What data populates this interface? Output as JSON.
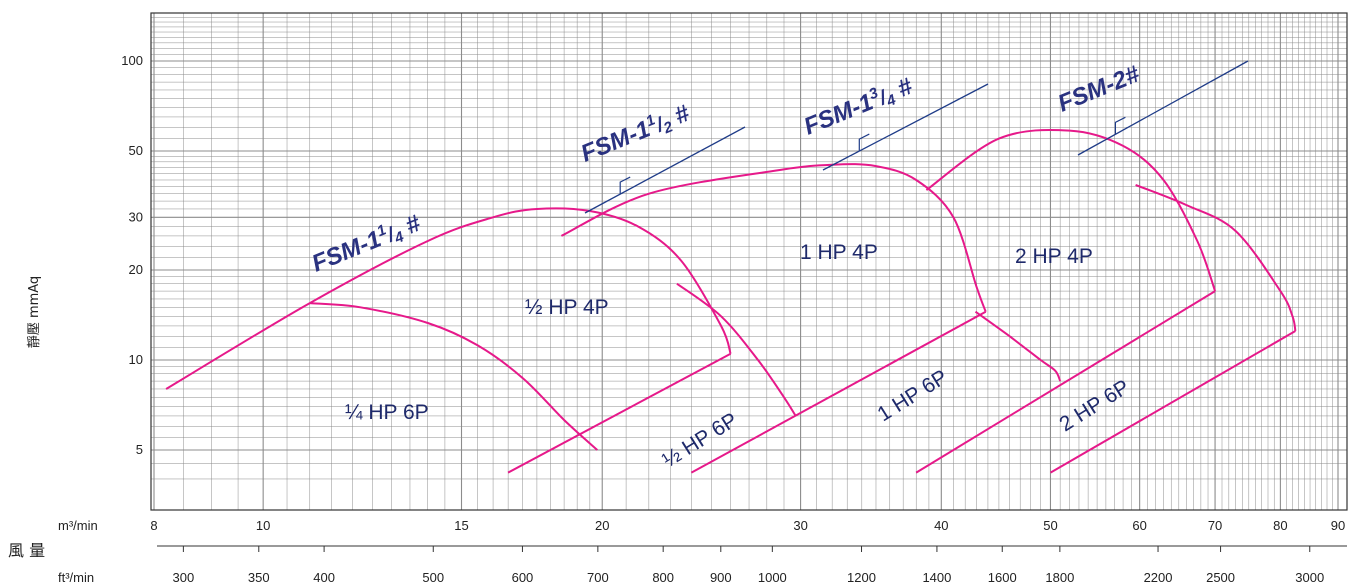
{
  "chart_data": {
    "type": "line",
    "y_axis": {
      "scale": "log",
      "label": "靜壓 mmAq",
      "ticks": [
        5,
        10,
        20,
        30,
        50,
        100
      ],
      "ylim": [
        3.5,
        150
      ]
    },
    "x_axis_m3": {
      "unit_label": "m³/min",
      "ticks": [
        8,
        10,
        15,
        20,
        30,
        40,
        50,
        60,
        70,
        80,
        90
      ]
    },
    "x_axis_ft3": {
      "unit_label": "ft³/min",
      "ticks": [
        300,
        350,
        400,
        500,
        600,
        700,
        800,
        900,
        1000,
        1200,
        1400,
        1600,
        1800,
        2200,
        2500,
        3000
      ]
    },
    "x_axis_title": "風 量",
    "grid": true,
    "series": [
      {
        "name": "¼ HP 6P",
        "color": "#e6198a",
        "x": [
          11.0,
          12.2,
          14.0,
          15.5,
          17.0,
          18.5,
          19.8
        ],
        "y": [
          15.5,
          15.0,
          13.3,
          11.2,
          8.7,
          6.3,
          5.0
        ]
      },
      {
        "name": "½ HP 4P",
        "color": "#e6198a",
        "x": [
          8.2,
          11.0,
          14.0,
          16.0,
          17.5,
          19.5,
          21.5,
          23.5,
          25.5,
          26.0
        ],
        "y": [
          8.0,
          15.5,
          25.0,
          30.0,
          32.0,
          31.5,
          28.0,
          21.5,
          13.0,
          10.5
        ]
      },
      {
        "name": "½ HP 6P",
        "color": "#e6198a",
        "x": [
          23.3,
          25.5,
          27.5,
          29.0,
          29.7
        ],
        "y": [
          18.0,
          14.0,
          10.0,
          7.5,
          6.5
        ]
      },
      {
        "name": "1 HP 4P",
        "color": "#e6198a",
        "x": [
          18.4,
          22.0,
          28.5,
          32.0,
          35.0,
          38.0,
          41.0,
          43.0,
          43.8
        ],
        "y": [
          26.0,
          36.0,
          43.0,
          45.0,
          44.5,
          40.0,
          30.0,
          17.5,
          14.5
        ]
      },
      {
        "name": "1 HP 6P",
        "color": "#e6198a",
        "x": [
          42.9,
          46.0,
          49.0,
          50.5,
          51.0
        ],
        "y": [
          14.5,
          12.0,
          10.0,
          9.2,
          8.5
        ]
      },
      {
        "name": "2 HP 4P",
        "color": "#e6198a",
        "x": [
          38.8,
          45.0,
          52.0,
          58.0,
          63.0,
          67.5,
          70.0
        ],
        "y": [
          37.0,
          55.0,
          58.5,
          52.0,
          40.0,
          25.0,
          17.0
        ]
      },
      {
        "name": "2 HP 6P",
        "color": "#e6198a",
        "x": [
          59.5,
          66.0,
          73.0,
          80.0,
          82.0,
          82.5
        ],
        "y": [
          38.5,
          33.0,
          27.0,
          17.0,
          14.0,
          12.5
        ]
      }
    ],
    "rating_lines": [
      {
        "name": "½ HP 6P",
        "x": [
          16.5,
          26.0
        ],
        "y": [
          4.2,
          10.5
        ]
      },
      {
        "name": "1 HP 6P",
        "x": [
          24.0,
          43.8
        ],
        "y": [
          4.2,
          14.5
        ]
      },
      {
        "name": "2 HP 6P",
        "x": [
          38.0,
          70.0
        ],
        "y": [
          4.2,
          17.0
        ]
      },
      {
        "name": "",
        "x": [
          50.0,
          82.5
        ],
        "y": [
          4.2,
          12.5
        ]
      }
    ],
    "region_labels": [
      "¼ HP 6P",
      "½ HP 4P",
      "1 HP 4P",
      "2 HP 4P",
      "½ HP 6P",
      "1 HP 6P",
      "2 HP 6P"
    ],
    "models": [
      {
        "main": "FSM-1",
        "sup": "1",
        "slash": "/",
        "sub": "4",
        "suffix": " #"
      },
      {
        "main": "FSM-1",
        "sup": "1",
        "slash": "/",
        "sub": "2",
        "suffix": " #"
      },
      {
        "main": "FSM-1",
        "sup": "3",
        "slash": "/",
        "sub": "4",
        "suffix": " #"
      },
      {
        "main": "FSM-2#",
        "sup": "",
        "slash": "",
        "sub": "",
        "suffix": ""
      }
    ],
    "colors": {
      "curve": "#e6198a",
      "leader": "#1f3c88",
      "grid": "#8c8c8c"
    }
  }
}
